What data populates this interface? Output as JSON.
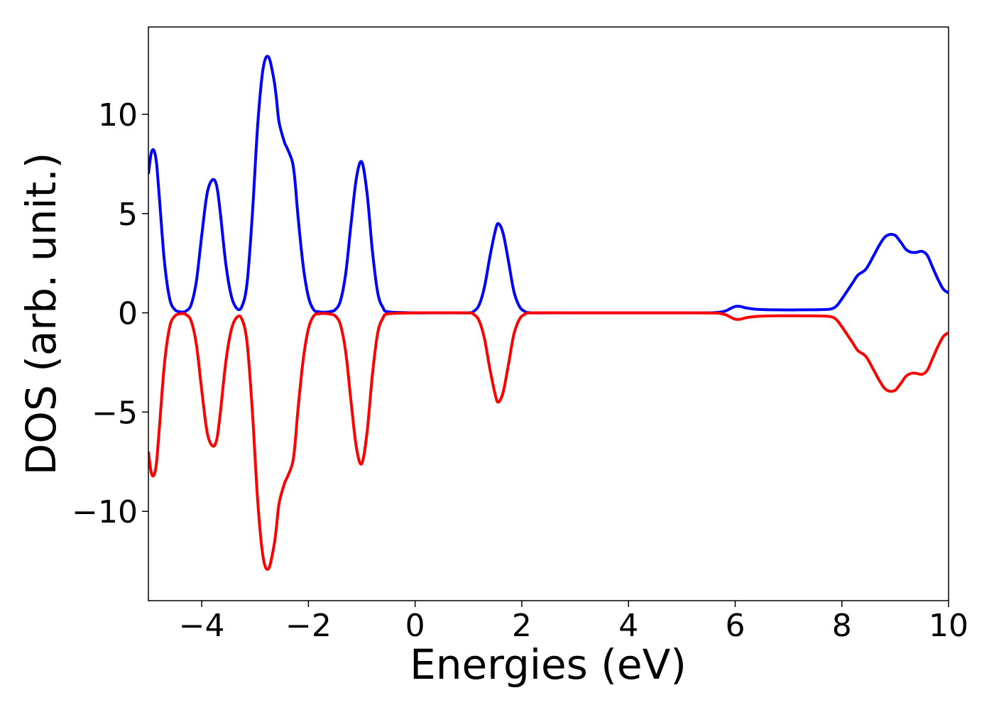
{
  "chart_data": {
    "type": "line",
    "title": "",
    "xlabel": "Energies (eV)",
    "ylabel": "DOS (arb. unit.)",
    "xlim": [
      -5,
      10
    ],
    "ylim": [
      -14.5,
      14.4
    ],
    "xticks": [
      -4,
      -2,
      0,
      2,
      4,
      6,
      8,
      10
    ],
    "xtick_labels": [
      "−4",
      "−2",
      "0",
      "2",
      "4",
      "6",
      "8",
      "10"
    ],
    "yticks": [
      -10,
      -5,
      0,
      5,
      10
    ],
    "ytick_labels": [
      "−10",
      "−5",
      "0",
      "5",
      "10"
    ],
    "grid": false,
    "legend": "none",
    "series": [
      {
        "color": "#0000ff",
        "x": [
          -5.0,
          -4.95,
          -4.9,
          -4.85,
          -4.8,
          -4.7,
          -4.6,
          -4.5,
          -4.4,
          -4.35,
          -4.3,
          -4.2,
          -4.1,
          -4.0,
          -3.9,
          -3.8,
          -3.72,
          -3.65,
          -3.55,
          -3.45,
          -3.35,
          -3.25,
          -3.15,
          -3.05,
          -2.95,
          -2.85,
          -2.75,
          -2.65,
          -2.6,
          -2.55,
          -2.45,
          -2.4,
          -2.3,
          -2.25,
          -2.2,
          -2.1,
          -2.0,
          -1.9,
          -1.8,
          -1.7,
          -1.6,
          -1.5,
          -1.4,
          -1.3,
          -1.2,
          -1.1,
          -1.0,
          -0.9,
          -0.8,
          -0.7,
          -0.6,
          -0.5,
          0.0,
          0.5,
          1.0,
          1.1,
          1.2,
          1.3,
          1.4,
          1.5,
          1.56,
          1.65,
          1.75,
          1.85,
          1.95,
          2.05,
          2.2,
          3.0,
          4.0,
          5.0,
          5.6,
          5.8,
          5.9,
          6.0,
          6.1,
          6.2,
          6.4,
          6.8,
          7.2,
          7.6,
          7.8,
          7.9,
          8.0,
          8.1,
          8.2,
          8.3,
          8.45,
          8.6,
          8.7,
          8.8,
          8.9,
          9.0,
          9.05,
          9.12,
          9.2,
          9.3,
          9.4,
          9.5,
          9.6,
          9.7,
          9.8,
          9.9,
          10.0
        ],
        "y": [
          7.0,
          8.0,
          8.2,
          7.6,
          6.0,
          2.6,
          0.7,
          0.15,
          0.05,
          0.04,
          0.08,
          0.4,
          1.6,
          3.9,
          6.0,
          6.7,
          6.4,
          5.0,
          2.5,
          0.9,
          0.25,
          0.3,
          1.5,
          5.0,
          9.5,
          12.3,
          12.9,
          11.8,
          10.8,
          9.6,
          8.6,
          8.3,
          7.6,
          6.6,
          5.0,
          2.4,
          0.8,
          0.15,
          0.05,
          0.03,
          0.06,
          0.15,
          0.6,
          2.0,
          4.5,
          6.8,
          7.6,
          6.0,
          3.1,
          1.0,
          0.25,
          0.05,
          0.0,
          0.0,
          0.0,
          0.08,
          0.4,
          1.3,
          2.8,
          4.1,
          4.5,
          4.0,
          2.6,
          1.1,
          0.35,
          0.08,
          0.0,
          0.0,
          0.0,
          0.0,
          0.01,
          0.08,
          0.2,
          0.32,
          0.32,
          0.25,
          0.18,
          0.15,
          0.15,
          0.16,
          0.2,
          0.35,
          0.7,
          1.1,
          1.5,
          1.9,
          2.2,
          2.9,
          3.4,
          3.8,
          3.95,
          3.9,
          3.75,
          3.5,
          3.2,
          3.05,
          3.05,
          3.1,
          2.9,
          2.3,
          1.7,
          1.2,
          1.0
        ]
      },
      {
        "color": "#ff0000",
        "x": [
          -5.0,
          -4.95,
          -4.9,
          -4.85,
          -4.8,
          -4.7,
          -4.6,
          -4.5,
          -4.4,
          -4.35,
          -4.3,
          -4.2,
          -4.1,
          -4.0,
          -3.9,
          -3.8,
          -3.72,
          -3.65,
          -3.55,
          -3.45,
          -3.35,
          -3.25,
          -3.15,
          -3.05,
          -2.95,
          -2.85,
          -2.75,
          -2.65,
          -2.6,
          -2.55,
          -2.45,
          -2.4,
          -2.3,
          -2.25,
          -2.2,
          -2.1,
          -2.0,
          -1.9,
          -1.8,
          -1.7,
          -1.6,
          -1.5,
          -1.4,
          -1.3,
          -1.2,
          -1.1,
          -1.0,
          -0.9,
          -0.8,
          -0.7,
          -0.6,
          -0.5,
          0.0,
          0.5,
          1.0,
          1.1,
          1.2,
          1.3,
          1.4,
          1.5,
          1.56,
          1.65,
          1.75,
          1.85,
          1.95,
          2.05,
          2.2,
          3.0,
          4.0,
          5.0,
          5.6,
          5.8,
          5.9,
          6.0,
          6.1,
          6.2,
          6.4,
          6.8,
          7.2,
          7.6,
          7.8,
          7.9,
          8.0,
          8.1,
          8.2,
          8.3,
          8.45,
          8.6,
          8.7,
          8.8,
          8.9,
          9.0,
          9.05,
          9.12,
          9.2,
          9.3,
          9.4,
          9.5,
          9.6,
          9.7,
          9.8,
          9.9,
          10.0
        ],
        "y": [
          -7.0,
          -8.0,
          -8.2,
          -7.6,
          -6.0,
          -2.6,
          -0.7,
          -0.15,
          -0.05,
          -0.04,
          -0.08,
          -0.4,
          -1.6,
          -3.9,
          -6.0,
          -6.7,
          -6.4,
          -5.0,
          -2.5,
          -0.9,
          -0.25,
          -0.3,
          -1.5,
          -5.0,
          -9.5,
          -12.3,
          -12.9,
          -11.8,
          -10.8,
          -9.6,
          -8.6,
          -8.3,
          -7.6,
          -6.6,
          -5.0,
          -2.4,
          -0.8,
          -0.15,
          -0.05,
          -0.03,
          -0.06,
          -0.15,
          -0.6,
          -2.0,
          -4.5,
          -6.8,
          -7.6,
          -6.0,
          -3.1,
          -1.0,
          -0.25,
          -0.05,
          0.0,
          0.0,
          0.0,
          -0.08,
          -0.4,
          -1.3,
          -2.8,
          -4.1,
          -4.5,
          -4.0,
          -2.6,
          -1.1,
          -0.35,
          -0.08,
          0.0,
          0.0,
          0.0,
          0.0,
          -0.01,
          -0.08,
          -0.2,
          -0.32,
          -0.32,
          -0.25,
          -0.18,
          -0.15,
          -0.15,
          -0.16,
          -0.2,
          -0.35,
          -0.7,
          -1.1,
          -1.5,
          -1.9,
          -2.2,
          -2.9,
          -3.4,
          -3.8,
          -3.95,
          -3.9,
          -3.75,
          -3.5,
          -3.2,
          -3.05,
          -3.05,
          -3.1,
          -2.9,
          -2.3,
          -1.7,
          -1.2,
          -1.0
        ]
      }
    ]
  }
}
